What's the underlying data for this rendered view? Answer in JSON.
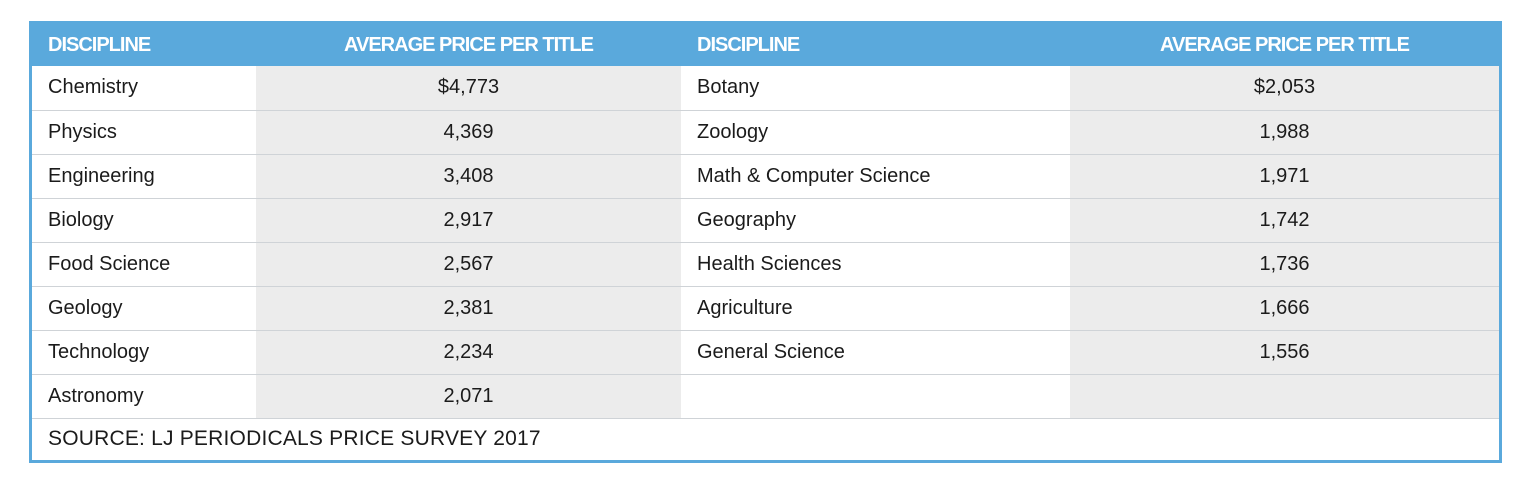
{
  "chart_data": {
    "type": "table",
    "columns": [
      "DISCIPLINE",
      "AVERAGE PRICE PER TITLE",
      "DISCIPLINE",
      "AVERAGE PRICE PER TITLE"
    ],
    "left": [
      {
        "discipline": "Chemistry",
        "price": "$4,773"
      },
      {
        "discipline": "Physics",
        "price": "4,369"
      },
      {
        "discipline": "Engineering",
        "price": "3,408"
      },
      {
        "discipline": "Biology",
        "price": "2,917"
      },
      {
        "discipline": "Food Science",
        "price": "2,567"
      },
      {
        "discipline": "Geology",
        "price": "2,381"
      },
      {
        "discipline": "Technology",
        "price": "2,234"
      },
      {
        "discipline": "Astronomy",
        "price": "2,071"
      }
    ],
    "right": [
      {
        "discipline": "Botany",
        "price": "$2,053"
      },
      {
        "discipline": "Zoology",
        "price": "1,988"
      },
      {
        "discipline": "Math & Computer Science",
        "price": "1,971"
      },
      {
        "discipline": "Geography",
        "price": "1,742"
      },
      {
        "discipline": "Health Sciences",
        "price": "1,736"
      },
      {
        "discipline": "Agriculture",
        "price": "1,666"
      },
      {
        "discipline": "General Science",
        "price": "1,556"
      }
    ],
    "source": "SOURCE: LJ PERIODICALS PRICE SURVEY 2017"
  },
  "colors": {
    "header_bg": "#5aa9dc",
    "header_text": "#ffffff",
    "value_cell_bg": "#ececec"
  }
}
